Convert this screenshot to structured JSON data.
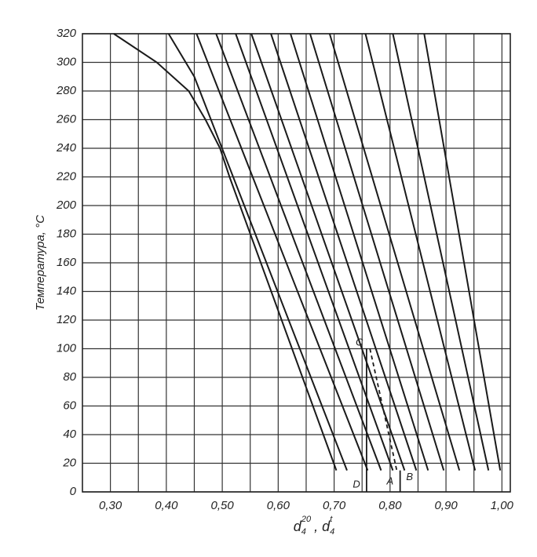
{
  "chart_data": {
    "type": "line",
    "ylabel": "Температура, °C",
    "xlabel": [
      {
        "text": "d",
        "sub": "4",
        "sup": "20"
      },
      {
        "text": ", d",
        "sub": "4",
        "sup": "t"
      }
    ],
    "xlim": [
      0.25,
      1.015
    ],
    "ylim": [
      0,
      320
    ],
    "xticks": [
      {
        "value": 0.3,
        "label": "0,30"
      },
      {
        "value": 0.4,
        "label": "0,40"
      },
      {
        "value": 0.5,
        "label": "0,50"
      },
      {
        "value": 0.6,
        "label": "0,60"
      },
      {
        "value": 0.7,
        "label": "0,70"
      },
      {
        "value": 0.8,
        "label": "0,80"
      },
      {
        "value": 0.9,
        "label": "0,90"
      },
      {
        "value": 1.0,
        "label": "1,00"
      }
    ],
    "x_grid": [
      0.35,
      0.45,
      0.55,
      0.65,
      0.75,
      0.85,
      0.95
    ],
    "yticks": [
      0,
      20,
      40,
      60,
      80,
      100,
      120,
      140,
      160,
      180,
      200,
      220,
      240,
      260,
      280,
      300,
      320
    ],
    "grid": true,
    "color": "#1a1a1a",
    "series": [
      {
        "x": [
          0.306,
          0.383,
          0.44,
          0.47,
          0.496,
          0.513,
          0.704
        ],
        "values": [
          320,
          300,
          280,
          260,
          240,
          220,
          15
        ]
      },
      {
        "x": [
          0.404,
          0.45,
          0.723
        ],
        "values": [
          320,
          290,
          15
        ]
      },
      {
        "x": [
          0.454,
          0.76
        ],
        "values": [
          320,
          15
        ]
      },
      {
        "x": [
          0.489,
          0.784
        ],
        "values": [
          320,
          15
        ]
      },
      {
        "x": [
          0.524,
          0.805
        ],
        "values": [
          320,
          15
        ]
      },
      {
        "x": [
          0.552,
          0.826
        ],
        "values": [
          320,
          15
        ]
      },
      {
        "x": [
          0.587,
          0.847
        ],
        "values": [
          320,
          15
        ]
      },
      {
        "x": [
          0.622,
          0.868
        ],
        "values": [
          320,
          15
        ]
      },
      {
        "x": [
          0.657,
          0.896
        ],
        "values": [
          320,
          15
        ]
      },
      {
        "x": [
          0.692,
          0.924
        ],
        "values": [
          320,
          15
        ]
      },
      {
        "x": [
          0.756,
          0.952
        ],
        "values": [
          320,
          15
        ]
      },
      {
        "x": [
          0.805,
          0.976
        ],
        "values": [
          320,
          15
        ]
      },
      {
        "x": [
          0.861,
          0.997
        ],
        "values": [
          320,
          15
        ]
      }
    ],
    "guides": [
      {
        "x": [
          0.758,
          0.758
        ],
        "values": [
          100,
          0
        ],
        "dashed": false
      },
      {
        "x": [
          0.764,
          0.812
        ],
        "values": [
          100,
          15
        ],
        "dashed": true
      },
      {
        "x": [
          0.818,
          0.818
        ],
        "values": [
          15,
          0
        ],
        "dashed": false
      }
    ],
    "annotations": [
      {
        "text": "C",
        "x": 0.745,
        "y": 104
      },
      {
        "text": "D",
        "x": 0.74,
        "y": 5
      },
      {
        "text": "A",
        "x": 0.8,
        "y": 7
      },
      {
        "text": "B",
        "x": 0.835,
        "y": 10
      }
    ]
  }
}
